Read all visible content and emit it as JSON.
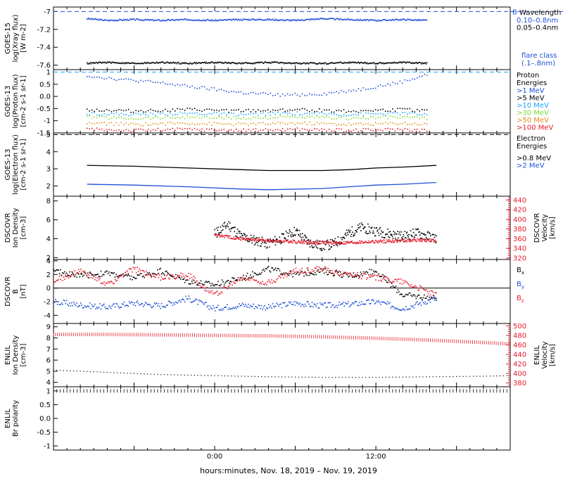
{
  "footer": {
    "time_axis_label": "hours:minutes, Nov. 18, 2019 – Nov. 19, 2019"
  },
  "colors": {
    "black": "#000000",
    "blue": "#1f4fd6",
    "cyan": "#19a7ff",
    "green": "#7ddc2c",
    "orange": "#e88a1b",
    "red": "#e51b2a",
    "teal": "#1ec8c8",
    "gray": "#888888"
  },
  "chart_data": [
    {
      "type": "scatter",
      "id": "goes15-xray",
      "ylabel": [
        "GOES-15",
        "log(Xray flux)",
        "[W m-2]"
      ],
      "ylim": [
        -7.65,
        -6.95
      ],
      "yticks": [
        -7.0,
        -7.2,
        -7.4,
        -7.6
      ],
      "xlim": [
        -12.0,
        22.0
      ],
      "xticks": [
        {
          "x": 0,
          "label": "0:00"
        },
        {
          "x": 12,
          "label": "12:00"
        }
      ],
      "reference_lines": [
        {
          "y": -7.0,
          "color": "#1f4fd6",
          "label": "B"
        }
      ],
      "legend": {
        "title": "Wavelength",
        "entries": [
          {
            "label": "0.10–0.8nm",
            "color": "#1f4fd6"
          },
          {
            "label": "0.05–0.4nm",
            "color": "#000000"
          }
        ],
        "note": [
          "flare class",
          "(.1–.8nm)"
        ],
        "note_color": "#1f4fd6"
      },
      "series": [
        {
          "name": "0.10–0.8nm",
          "color": "#1f4fd6",
          "x": [
            -9.5,
            -8,
            -6,
            -4,
            -2,
            0,
            2,
            4,
            6,
            8,
            10,
            12,
            14,
            15.8
          ],
          "y": [
            -7.08,
            -7.1,
            -7.09,
            -7.1,
            -7.09,
            -7.1,
            -7.09,
            -7.09,
            -7.1,
            -7.08,
            -7.09,
            -7.1,
            -7.09,
            -7.1
          ]
        },
        {
          "name": "0.05–0.4nm",
          "color": "#000000",
          "x": [
            -9.5,
            -8,
            -6,
            -4,
            -2,
            0,
            2,
            4,
            6,
            8,
            10,
            12,
            14,
            15.8
          ],
          "y": [
            -7.58,
            -7.57,
            -7.58,
            -7.57,
            -7.58,
            -7.57,
            -7.58,
            -7.57,
            -7.58,
            -7.58,
            -7.57,
            -7.58,
            -7.57,
            -7.58
          ]
        }
      ]
    },
    {
      "type": "scatter",
      "id": "goes13-proton",
      "ylabel": [
        "GOES-13",
        "log(Proton flux)",
        "[cm-2 s-1 sr-1]"
      ],
      "ylim": [
        -1.5,
        1.1
      ],
      "yticks": [
        1.0,
        0.5,
        0.0,
        -0.5,
        -1.0,
        -1.5
      ],
      "xlim": [
        -12.0,
        22.0
      ],
      "xticks": [
        {
          "x": 0,
          "label": "0:00"
        },
        {
          "x": 12,
          "label": "12:00"
        }
      ],
      "reference_lines": [
        {
          "y": 1.0,
          "color": "#19a7ff"
        }
      ],
      "legend": {
        "title": [
          "Proton",
          "Energies"
        ],
        "entries": [
          {
            "label": ">1 MeV",
            "color": "#1f4fd6"
          },
          {
            "label": ">5 MeV",
            "color": "#000000"
          },
          {
            "label": ">10 MeV",
            "color": "#19a7ff"
          },
          {
            "label": ">30 MeV",
            "color": "#7ddc2c"
          },
          {
            "label": ">50 MeV",
            "color": "#e88a1b"
          },
          {
            "label": ">100 MeV",
            "color": "#e51b2a"
          }
        ]
      },
      "series": [
        {
          "name": ">1 MeV",
          "color": "#1f4fd6",
          "x": [
            -9.5,
            -7,
            -4,
            -1,
            2,
            5,
            8,
            11,
            14,
            15.8
          ],
          "y": [
            0.85,
            0.7,
            0.55,
            0.35,
            0.15,
            0.05,
            0.1,
            0.3,
            0.6,
            0.9
          ]
        },
        {
          "name": ">5 MeV",
          "color": "#000000",
          "x": [
            -9.5,
            -6,
            -2,
            2,
            6,
            10,
            14,
            15.8
          ],
          "y": [
            -0.55,
            -0.6,
            -0.55,
            -0.6,
            -0.55,
            -0.6,
            -0.55,
            -0.6
          ]
        },
        {
          "name": ">10 MeV",
          "color": "#19a7ff",
          "x": [
            -9.5,
            -6,
            -2,
            2,
            6,
            10,
            14,
            15.8
          ],
          "y": [
            -0.7,
            -0.75,
            -0.7,
            -0.75,
            -0.7,
            -0.75,
            -0.7,
            -0.75
          ]
        },
        {
          "name": ">30 MeV",
          "color": "#7ddc2c",
          "x": [
            -9.5,
            -6,
            -2,
            2,
            6,
            10,
            14,
            15.8
          ],
          "y": [
            -0.85,
            -0.9,
            -0.85,
            -0.9,
            -0.85,
            -0.9,
            -0.85,
            -0.9
          ]
        },
        {
          "name": ">50 MeV",
          "color": "#e88a1b",
          "x": [
            -9.5,
            -6,
            -2,
            2,
            6,
            10,
            14,
            15.8
          ],
          "y": [
            -1.1,
            -1.15,
            -1.1,
            -1.15,
            -1.1,
            -1.15,
            -1.1,
            -1.15
          ]
        },
        {
          "name": ">100 MeV",
          "color": "#e51b2a",
          "x": [
            -9.5,
            -6,
            -2,
            2,
            6,
            10,
            14,
            15.8
          ],
          "y": [
            -1.35,
            -1.4,
            -1.35,
            -1.4,
            -1.35,
            -1.4,
            -1.35,
            -1.4
          ]
        }
      ]
    },
    {
      "type": "line",
      "id": "goes13-electron",
      "ylabel": [
        "GOES-13",
        "log(Electron flux)",
        "[cm-2 s-1 sr-1]"
      ],
      "ylim": [
        1.4,
        5.1
      ],
      "yticks": [
        5,
        4,
        3,
        2
      ],
      "xlim": [
        -12.0,
        22.0
      ],
      "xticks": [
        {
          "x": 0,
          "label": "0:00"
        },
        {
          "x": 12,
          "label": "12:00"
        }
      ],
      "reference_lines": [
        {
          "y": 5.0,
          "color": "#000000",
          "dashed": true
        }
      ],
      "legend": {
        "title": [
          "Electron",
          "Energies"
        ],
        "entries": [
          {
            "label": ">0.8 MeV",
            "color": "#000000"
          },
          {
            "label": ">2 MeV",
            "color": "#1f4fd6"
          }
        ]
      },
      "series": [
        {
          "name": ">0.8 MeV",
          "color": "#000000",
          "x": [
            -9.5,
            -6,
            -2,
            2,
            4,
            8,
            10,
            12,
            14,
            16.5
          ],
          "y": [
            3.2,
            3.15,
            3.05,
            2.95,
            2.9,
            2.9,
            2.95,
            3.05,
            3.1,
            3.2
          ]
        },
        {
          "name": ">2 MeV",
          "color": "#1f4fd6",
          "x": [
            -9.5,
            -6,
            -2,
            2,
            4,
            8,
            10,
            12,
            14,
            16.5
          ],
          "y": [
            2.1,
            2.05,
            1.95,
            1.82,
            1.78,
            1.85,
            1.95,
            2.05,
            2.1,
            2.2
          ]
        }
      ]
    },
    {
      "type": "scatter",
      "id": "dscovr-plasma",
      "ylabel": [
        "DSCOVR",
        "Ion Density",
        "[cm-3]"
      ],
      "y2label": [
        "DSCOVR",
        "Velocity",
        "[km/s]"
      ],
      "ylim": [
        1.8,
        8.5
      ],
      "yticks": [
        8,
        6,
        4,
        2
      ],
      "y2lim": [
        317,
        448
      ],
      "y2ticks": [
        440,
        420,
        400,
        380,
        360,
        340,
        320
      ],
      "xlim": [
        -12.0,
        22.0
      ],
      "xticks": [
        {
          "x": 0,
          "label": "0:00"
        },
        {
          "x": 12,
          "label": "12:00"
        }
      ],
      "series": [
        {
          "name": "Ion Density",
          "color": "#000000",
          "axis": "left",
          "x": [
            0,
            1,
            2,
            3,
            4,
            5,
            6,
            7,
            8,
            9,
            10,
            11,
            12,
            13,
            14,
            15,
            16.5
          ],
          "y": [
            4.5,
            5.5,
            4.2,
            3.8,
            3.5,
            4.0,
            4.8,
            3.6,
            3.2,
            3.5,
            4.6,
            5.2,
            4.8,
            4.5,
            4.2,
            4.6,
            4.0
          ]
        },
        {
          "name": "Velocity",
          "color": "#e51b2a",
          "axis": "right",
          "x": [
            0,
            1,
            2,
            3,
            4,
            5,
            6,
            7,
            8,
            9,
            10,
            11,
            12,
            13,
            14,
            15,
            16.5
          ],
          "y": [
            368,
            364,
            360,
            358,
            356,
            355,
            354,
            352,
            352,
            351,
            352,
            353,
            354,
            355,
            356,
            357,
            356
          ]
        }
      ]
    },
    {
      "type": "scatter",
      "id": "dscovr-field",
      "ylabel": [
        "DSCOVR",
        "B",
        "[nT]"
      ],
      "ylim": [
        -5.2,
        4.2
      ],
      "yticks": [
        4,
        2,
        0,
        -2,
        -4
      ],
      "xlim": [
        -12.0,
        22.0
      ],
      "xticks": [
        {
          "x": 0,
          "label": "0:00"
        },
        {
          "x": 12,
          "label": "12:00"
        }
      ],
      "reference_lines": [
        {
          "y": 0,
          "color": "#000000"
        }
      ],
      "legend": {
        "entries": [
          {
            "label": "Bx",
            "color": "#000000"
          },
          {
            "label": "By",
            "color": "#1f4fd6"
          },
          {
            "label": "Bz",
            "color": "#e51b2a"
          }
        ]
      },
      "series": [
        {
          "name": "Bx",
          "color": "#000000",
          "x": [
            -12,
            -10,
            -8,
            -6,
            -4,
            -2,
            0,
            2,
            4,
            6,
            8,
            10,
            12,
            14,
            16.5
          ],
          "y": [
            2.5,
            1.8,
            2.2,
            1.5,
            2.5,
            1.0,
            0.5,
            1.5,
            2.8,
            2.0,
            2.5,
            1.8,
            2.5,
            -1.0,
            -1.5
          ]
        },
        {
          "name": "By",
          "color": "#1f4fd6",
          "x": [
            -12,
            -10,
            -8,
            -6,
            -4,
            -2,
            0,
            2,
            4,
            6,
            8,
            10,
            12,
            14,
            16.5
          ],
          "y": [
            -2.0,
            -2.5,
            -2.8,
            -2.2,
            -2.6,
            -1.5,
            -3.0,
            -2.5,
            -2.8,
            -2.2,
            -2.6,
            -2.4,
            -2.0,
            -3.0,
            -1.5
          ]
        },
        {
          "name": "Bz",
          "color": "#e51b2a",
          "x": [
            -12,
            -10,
            -8,
            -6,
            -4,
            -2,
            0,
            2,
            4,
            6,
            8,
            10,
            12,
            14,
            16.5
          ],
          "y": [
            1.0,
            2.5,
            0.5,
            2.8,
            1.5,
            2.0,
            -1.0,
            1.5,
            0.8,
            2.5,
            2.8,
            2.0,
            1.5,
            1.0,
            -1.0
          ]
        }
      ]
    },
    {
      "type": "line",
      "id": "enlil-plasma",
      "ylabel": [
        "ENLIL",
        "Ion Density",
        "[cm-3]"
      ],
      "y2label": [
        "ENLIL",
        "Velocity",
        "[km/s]"
      ],
      "ylim": [
        3.6,
        9.3
      ],
      "yticks": [
        9,
        8,
        7,
        6,
        5,
        4
      ],
      "y2lim": [
        372,
        505
      ],
      "y2ticks": [
        500,
        480,
        460,
        440,
        420,
        400,
        380
      ],
      "xlim": [
        -12.0,
        22.0
      ],
      "xticks": [
        {
          "x": 0,
          "label": "0:00"
        },
        {
          "x": 12,
          "label": "12:00"
        }
      ],
      "series": [
        {
          "name": "Ion Density",
          "color": "#000000",
          "axis": "left",
          "x": [
            -12,
            -8,
            -4,
            0,
            4,
            8,
            12,
            16,
            20,
            22
          ],
          "y": [
            5.1,
            4.9,
            4.7,
            4.6,
            4.5,
            4.45,
            4.45,
            4.5,
            4.55,
            4.6
          ]
        },
        {
          "name": "Velocity",
          "color": "#e51b2a",
          "axis": "right",
          "x": [
            -12,
            -8,
            -4,
            0,
            4,
            8,
            12,
            16,
            20,
            22
          ],
          "y": [
            482,
            482,
            481,
            480,
            479,
            477,
            474,
            470,
            465,
            462
          ]
        }
      ]
    },
    {
      "type": "line",
      "id": "enlil-polarity",
      "ylabel": [
        "ENLIL",
        "Br polarity"
      ],
      "ylim": [
        -1.15,
        1.15
      ],
      "yticks": [
        1.0,
        0.5,
        0.0,
        -0.5,
        -1.0
      ],
      "xlim": [
        -12.0,
        22.0
      ],
      "xticks": [
        {
          "x": 0,
          "label": "0:00"
        },
        {
          "x": 12,
          "label": "12:00"
        }
      ],
      "series": [
        {
          "name": "Br polarity",
          "color": "#000000",
          "x": [
            -12,
            22
          ],
          "y": [
            1.0,
            1.0
          ]
        }
      ]
    }
  ]
}
